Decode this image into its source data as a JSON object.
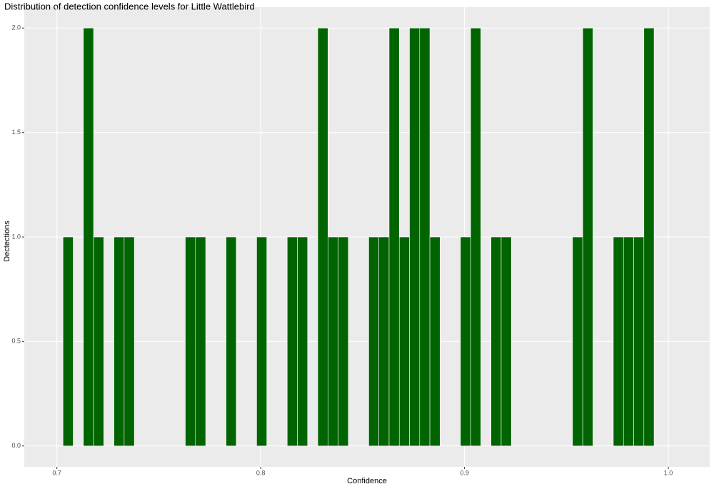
{
  "chart_data": {
    "type": "histogram",
    "title": "Distribution of detection confidence levels for Little Wattlebird",
    "x_label": "Confidence",
    "y_label": "Dectections",
    "bins": [
      0.703,
      0.708,
      0.713,
      0.718,
      0.723,
      0.728,
      0.733,
      0.738,
      0.743,
      0.748,
      0.753,
      0.758,
      0.763,
      0.768,
      0.773,
      0.778,
      0.783,
      0.788,
      0.793,
      0.798,
      0.803,
      0.808,
      0.813,
      0.818,
      0.823,
      0.828,
      0.833,
      0.838,
      0.843,
      0.848,
      0.853,
      0.858,
      0.863,
      0.868,
      0.873,
      0.878,
      0.883,
      0.888,
      0.893,
      0.898,
      0.903,
      0.908,
      0.913,
      0.918,
      0.923,
      0.928,
      0.933,
      0.938,
      0.943,
      0.948,
      0.953,
      0.958,
      0.963,
      0.968,
      0.973,
      0.978,
      0.983,
      0.988,
      0.993
    ],
    "values": [
      1,
      0,
      2,
      1,
      0,
      1,
      1,
      0,
      0,
      0,
      0,
      0,
      1,
      1,
      0,
      0,
      1,
      0,
      0,
      1,
      0,
      0,
      1,
      1,
      0,
      2,
      1,
      1,
      0,
      0,
      1,
      1,
      2,
      1,
      2,
      2,
      1,
      0,
      0,
      1,
      2,
      0,
      1,
      1,
      0,
      0,
      0,
      0,
      0,
      0,
      1,
      2,
      0,
      0,
      1,
      1,
      1,
      2
    ],
    "color": "#006400",
    "xlim": [
      0.684,
      1.0203
    ],
    "ylim": [
      -0.1,
      2.1
    ],
    "xticks": [
      0.7,
      0.8,
      0.9,
      {
        "value": 1,
        "label": "1.0"
      }
    ],
    "yticks": [
      {
        "value": 0,
        "label": "0.0"
      },
      0.5,
      {
        "value": 1,
        "label": "1.0"
      },
      1.5,
      {
        "value": 2,
        "label": "2.0"
      }
    ],
    "grid": true
  }
}
